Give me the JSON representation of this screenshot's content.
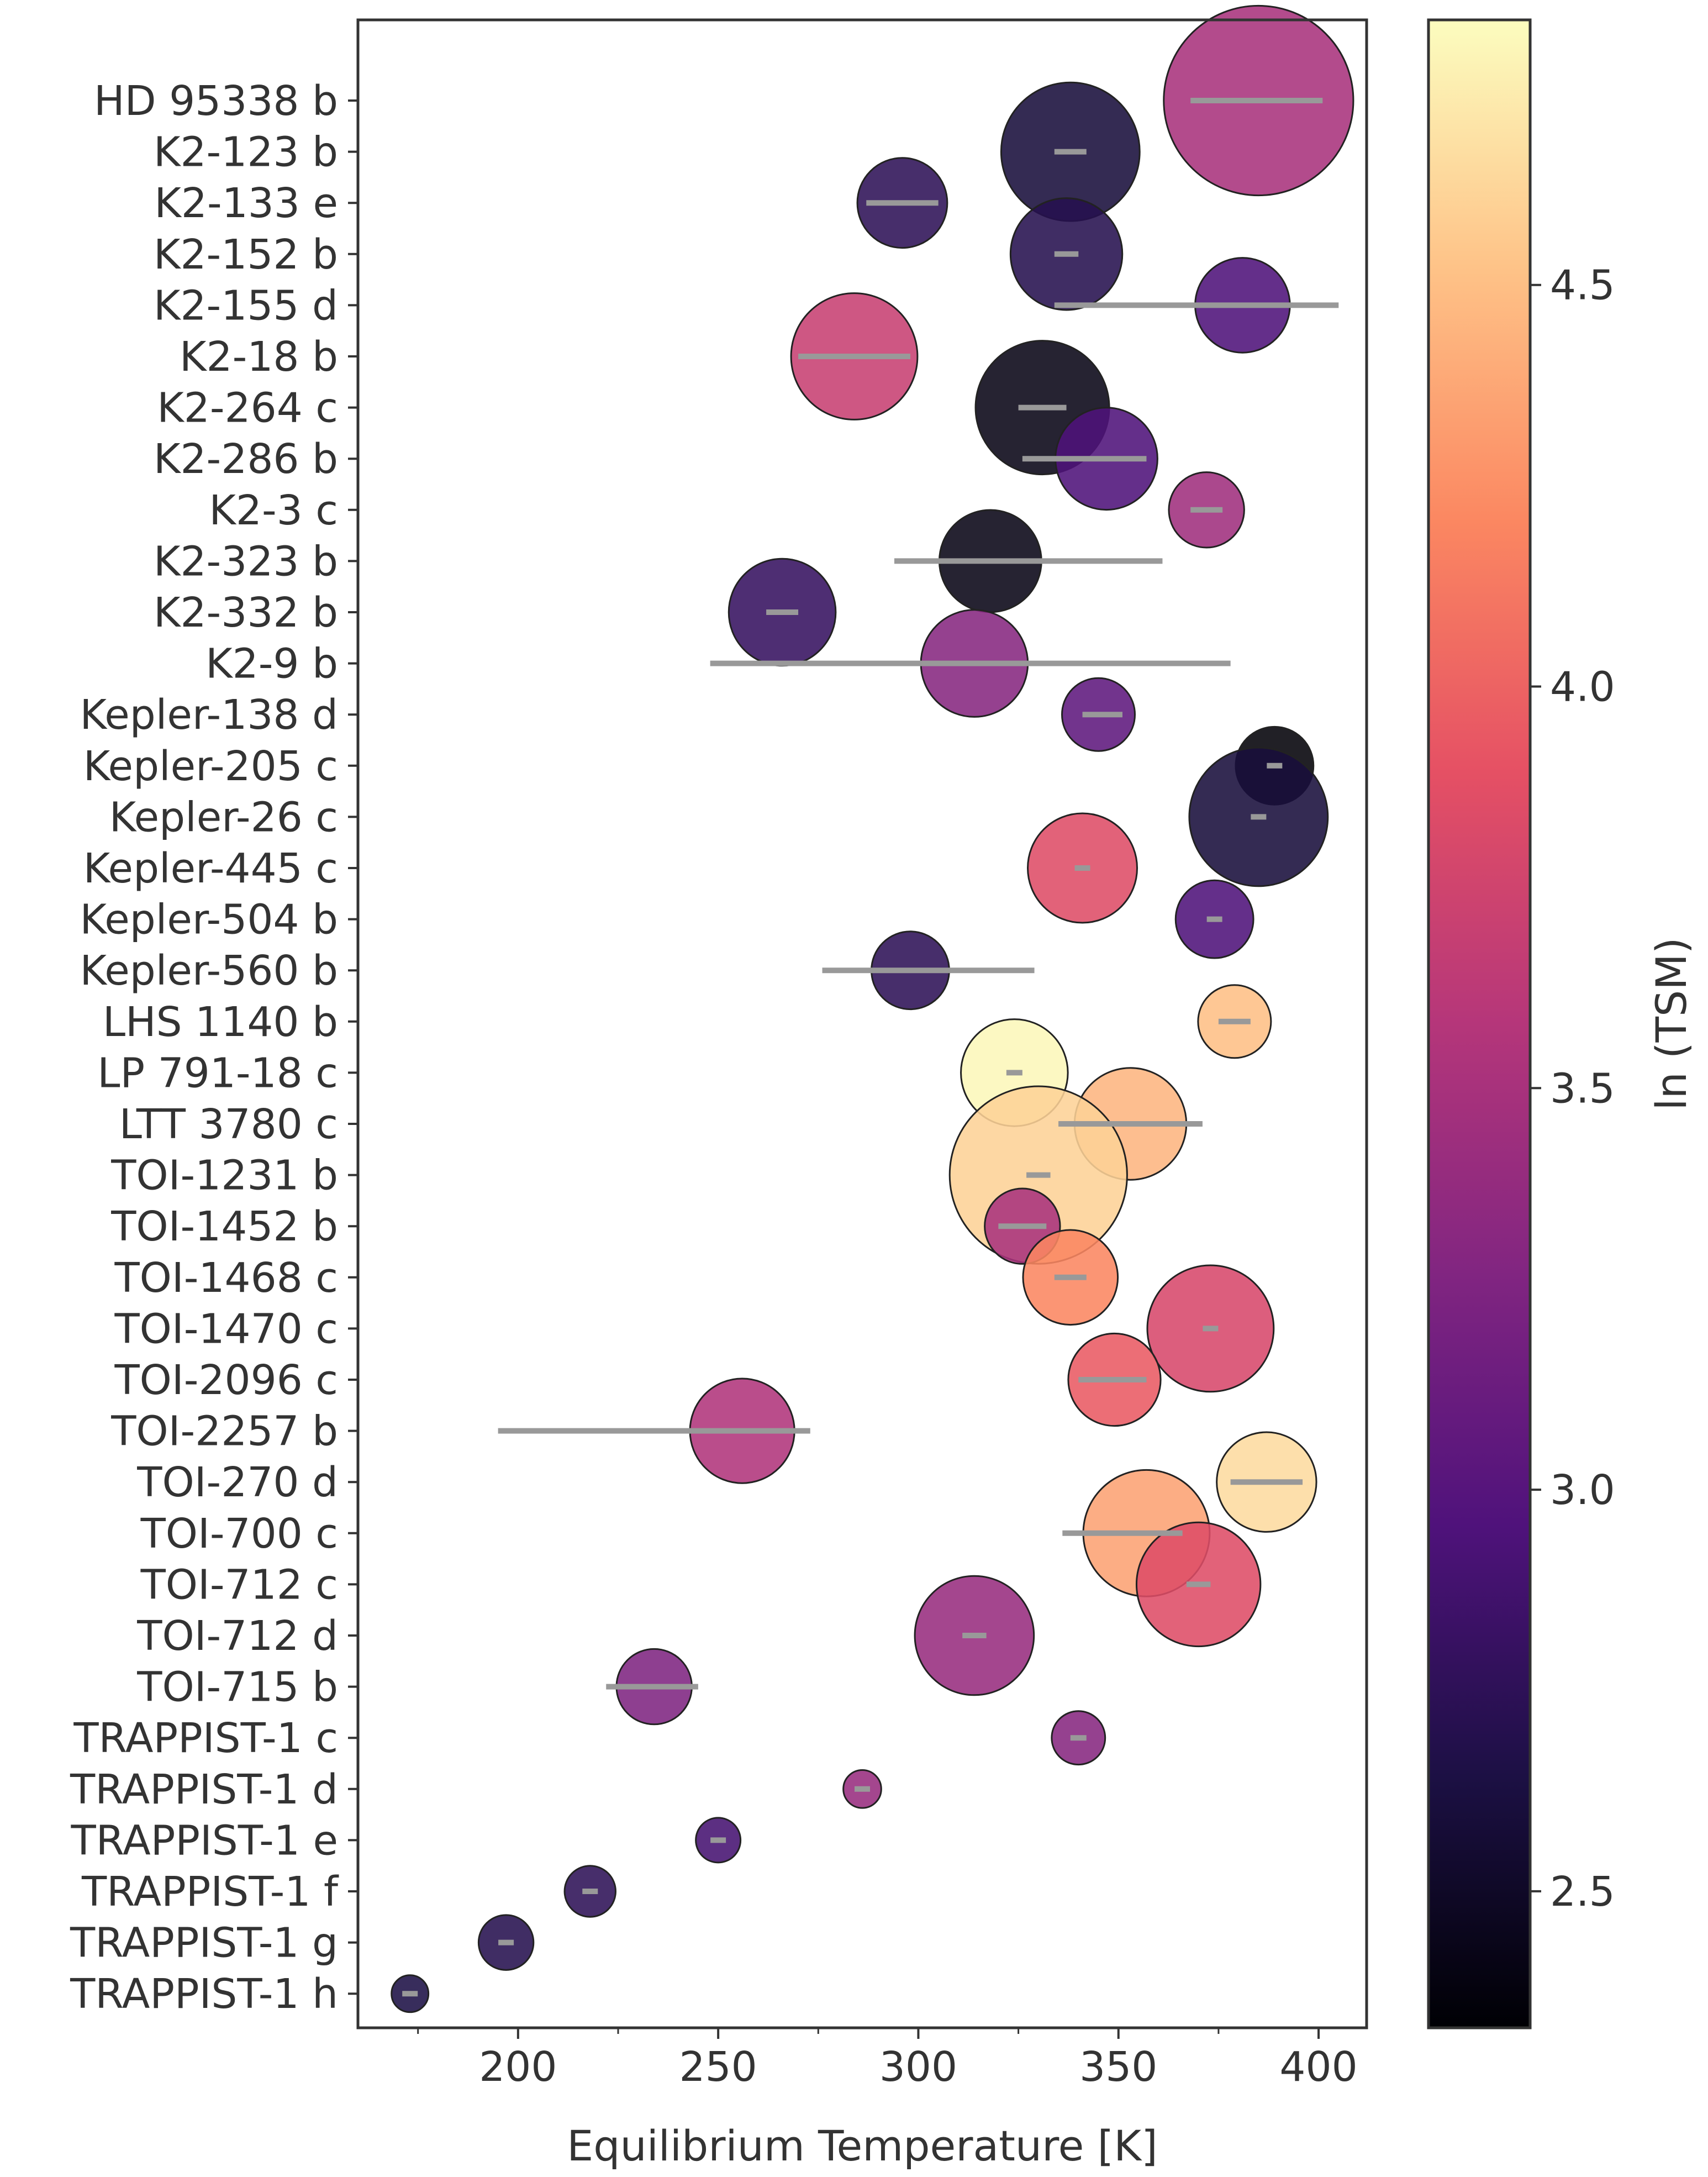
{
  "chart_data": {
    "type": "scatter",
    "title": "",
    "xlabel": "Equilibrium Temperature [K]",
    "ylabel": "",
    "xlim": [
      160,
      412
    ],
    "x_ticks": [
      200,
      250,
      300,
      350,
      400
    ],
    "x_tick_labels": [
      "200",
      "250",
      "300",
      "350",
      "400"
    ],
    "grid": false,
    "legend": "none",
    "marker_size_encoding": "planet radius (relative)",
    "colorbar": {
      "label": "ln (TSM)",
      "colormap": "magma",
      "range": [
        2.33,
        4.83
      ],
      "ticks": [
        2.5,
        3.0,
        3.5,
        4.0,
        4.5
      ],
      "tick_labels": [
        "2.5",
        "3.0",
        "3.5",
        "4.0",
        "4.5"
      ]
    },
    "categories": [
      "HD 95338 b",
      "K2-123 b",
      "K2-133 e",
      "K2-152 b",
      "K2-155 d",
      "K2-18 b",
      "K2-264 c",
      "K2-286 b",
      "K2-3 c",
      "K2-323 b",
      "K2-332 b",
      "K2-9 b",
      "Kepler-138 d",
      "Kepler-205 c",
      "Kepler-26 c",
      "Kepler-445 c",
      "Kepler-504 b",
      "Kepler-560 b",
      "LHS 1140 b",
      "LP 791-18 c",
      "LTT 3780 c",
      "TOI-1231 b",
      "TOI-1452 b",
      "TOI-1468 c",
      "TOI-1470 c",
      "TOI-2096 c",
      "TOI-2257 b",
      "TOI-270 d",
      "TOI-700 c",
      "TOI-712 c",
      "TOI-712 d",
      "TOI-715 b",
      "TRAPPIST-1 c",
      "TRAPPIST-1 d",
      "TRAPPIST-1 e",
      "TRAPPIST-1 f",
      "TRAPPIST-1 g",
      "TRAPPIST-1 h"
    ],
    "teq": [
      385,
      338,
      296,
      337,
      381,
      284,
      331,
      347,
      372,
      318,
      266,
      314,
      345,
      389,
      385,
      341,
      374,
      298,
      379,
      324,
      353,
      330,
      326,
      338,
      373,
      349,
      256,
      387,
      357,
      370,
      314,
      234,
      340,
      286,
      250,
      218,
      197,
      173
    ],
    "teq_err_low": [
      368,
      334,
      287,
      334,
      334,
      270,
      325,
      326,
      368,
      294,
      262,
      248,
      341,
      389,
      385,
      341,
      374,
      276,
      375,
      322,
      335,
      327,
      320,
      334,
      373,
      340,
      195,
      378,
      336,
      367,
      311,
      222,
      338,
      285,
      249,
      217,
      196,
      172
    ],
    "teq_err_high": [
      401,
      342,
      305,
      340,
      405,
      298,
      337,
      357,
      376,
      361,
      270,
      378,
      351,
      389,
      385,
      341,
      374,
      329,
      383,
      326,
      371,
      333,
      332,
      342,
      373,
      357,
      273,
      396,
      366,
      373,
      317,
      245,
      342,
      287,
      251,
      219,
      198,
      174
    ],
    "ln_tsm": [
      3.5,
      2.6,
      2.75,
      2.7,
      2.95,
      3.7,
      2.42,
      2.95,
      3.45,
      2.42,
      2.8,
      3.3,
      3.05,
      2.35,
      2.6,
      3.85,
      2.95,
      2.75,
      4.5,
      4.8,
      4.45,
      4.6,
      3.5,
      4.2,
      3.8,
      3.95,
      3.55,
      4.65,
      4.35,
      3.85,
      3.4,
      3.25,
      3.3,
      3.4,
      2.9,
      2.75,
      2.7,
      2.65
    ],
    "radius": [
      3.9,
      2.85,
      1.85,
      2.3,
      1.95,
      2.6,
      2.75,
      2.1,
      1.55,
      2.1,
      2.2,
      2.2,
      1.5,
      1.6,
      2.85,
      2.25,
      1.6,
      1.6,
      1.5,
      2.2,
      2.3,
      3.65,
      1.55,
      1.95,
      2.6,
      1.9,
      2.15,
      2.05,
      2.6,
      2.55,
      2.45,
      1.55,
      1.1,
      0.78,
      0.92,
      1.05,
      1.13,
      0.76
    ]
  }
}
